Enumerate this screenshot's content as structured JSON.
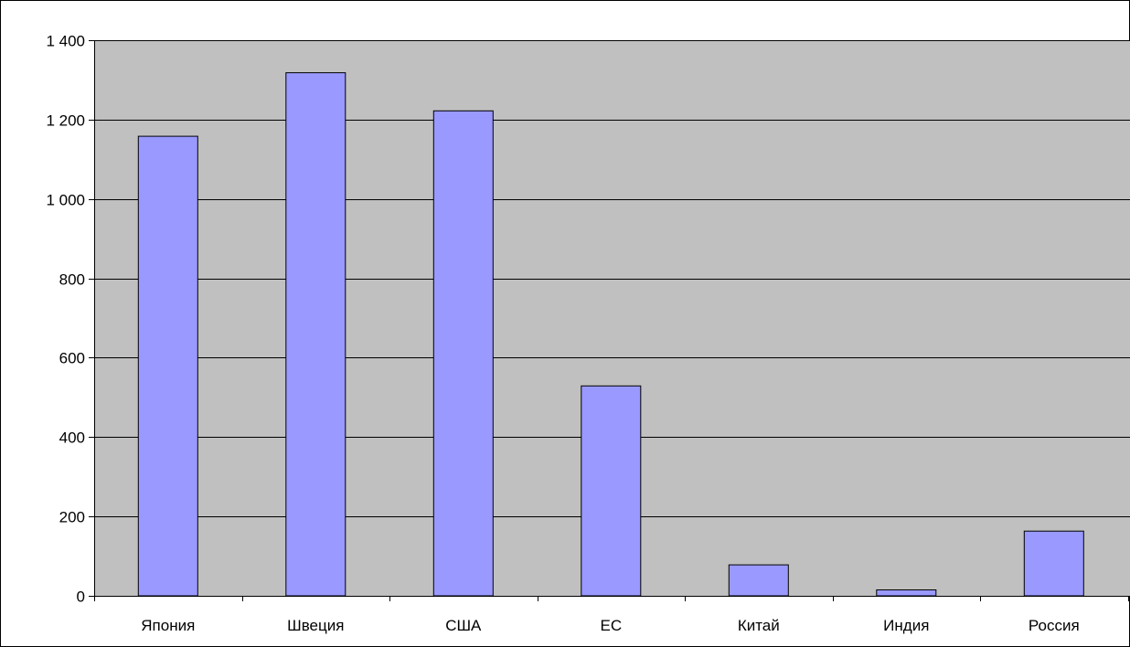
{
  "chart_data": {
    "type": "bar",
    "title": "",
    "xlabel": "",
    "ylabel": "",
    "categories": [
      "Япония",
      "Швеция",
      "США",
      "ЕС",
      "Китай",
      "Индия",
      "Россия"
    ],
    "values": [
      1158,
      1318,
      1222,
      529,
      78,
      15,
      163
    ],
    "ylim": [
      0,
      1400
    ],
    "yticks": [
      0,
      200,
      400,
      600,
      800,
      1000,
      1200,
      1400
    ],
    "ytick_labels": [
      "0",
      "200",
      "400",
      "600",
      "800",
      "1 000",
      "1 200",
      "1 400"
    ],
    "grid": true,
    "legend": "none",
    "colors": {
      "plot_background": "#c0c0c0",
      "bar_fill": "#9999ff",
      "bar_stroke": "#000000",
      "gridline": "#000000",
      "frame": "#000000"
    }
  }
}
